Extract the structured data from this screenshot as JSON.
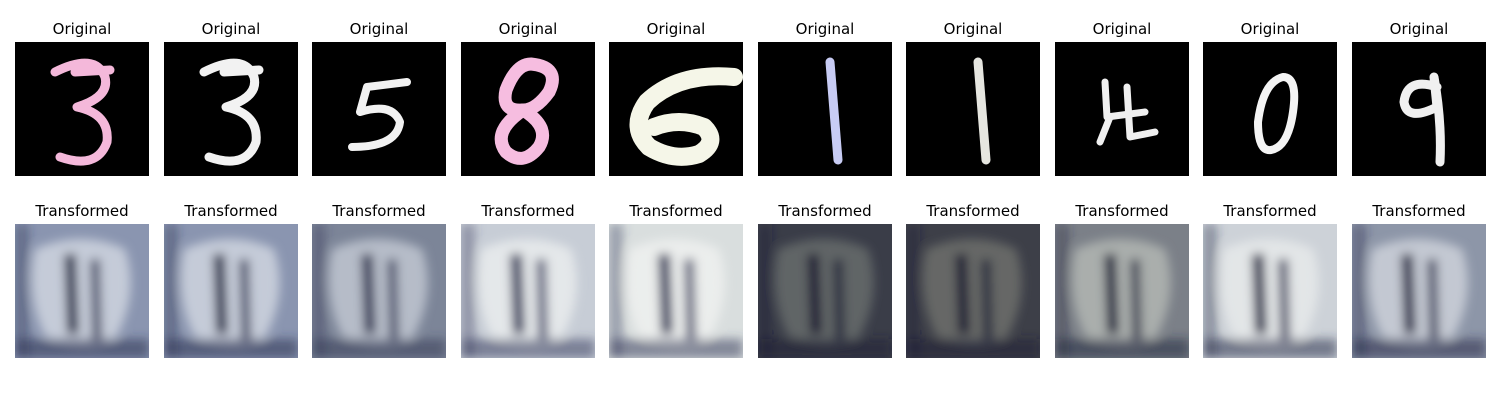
{
  "rows": [
    {
      "title": "Original",
      "tiles": [
        {
          "digit": "3",
          "color": "#f4b8da"
        },
        {
          "digit": "3",
          "color": "#f2f2f2"
        },
        {
          "digit": "5",
          "color": "#f2f2f2"
        },
        {
          "digit": "8",
          "color": "#f6bde0"
        },
        {
          "digit": "6",
          "color": "#f5f6e8"
        },
        {
          "digit": "1",
          "color": "#c8ccf4"
        },
        {
          "digit": "1",
          "color": "#e6e6e0"
        },
        {
          "digit": "4",
          "color": "#f0f0f0"
        },
        {
          "digit": "0",
          "color": "#f4f4f4"
        },
        {
          "digit": "9",
          "color": "#f0f0f0"
        }
      ]
    },
    {
      "title": "Transformed",
      "tiles": [
        {
          "bg": "#8a95b0",
          "shape": "#d8dde6",
          "dark": "#2b3050"
        },
        {
          "bg": "#8a95b0",
          "shape": "#d8dde6",
          "dark": "#2b3050"
        },
        {
          "bg": "#7c8598",
          "shape": "#c9cfd8",
          "dark": "#343a58"
        },
        {
          "bg": "#c7cdd6",
          "shape": "#eef0f0",
          "dark": "#3b3f60"
        },
        {
          "bg": "#d9dede",
          "shape": "#f1f3f2",
          "dark": "#3a3f5e"
        },
        {
          "bg": "#3a3d48",
          "shape": "#6d7170",
          "dark": "#1b1e34"
        },
        {
          "bg": "#3d3f48",
          "shape": "#737670",
          "dark": "#1c1f36"
        },
        {
          "bg": "#7b8088",
          "shape": "#b9bdb8",
          "dark": "#23273f"
        },
        {
          "bg": "#cdd2d8",
          "shape": "#eaecec",
          "dark": "#2a2e4c"
        },
        {
          "bg": "#8d96a8",
          "shape": "#d6dae0",
          "dark": "#252a48"
        }
      ]
    }
  ]
}
